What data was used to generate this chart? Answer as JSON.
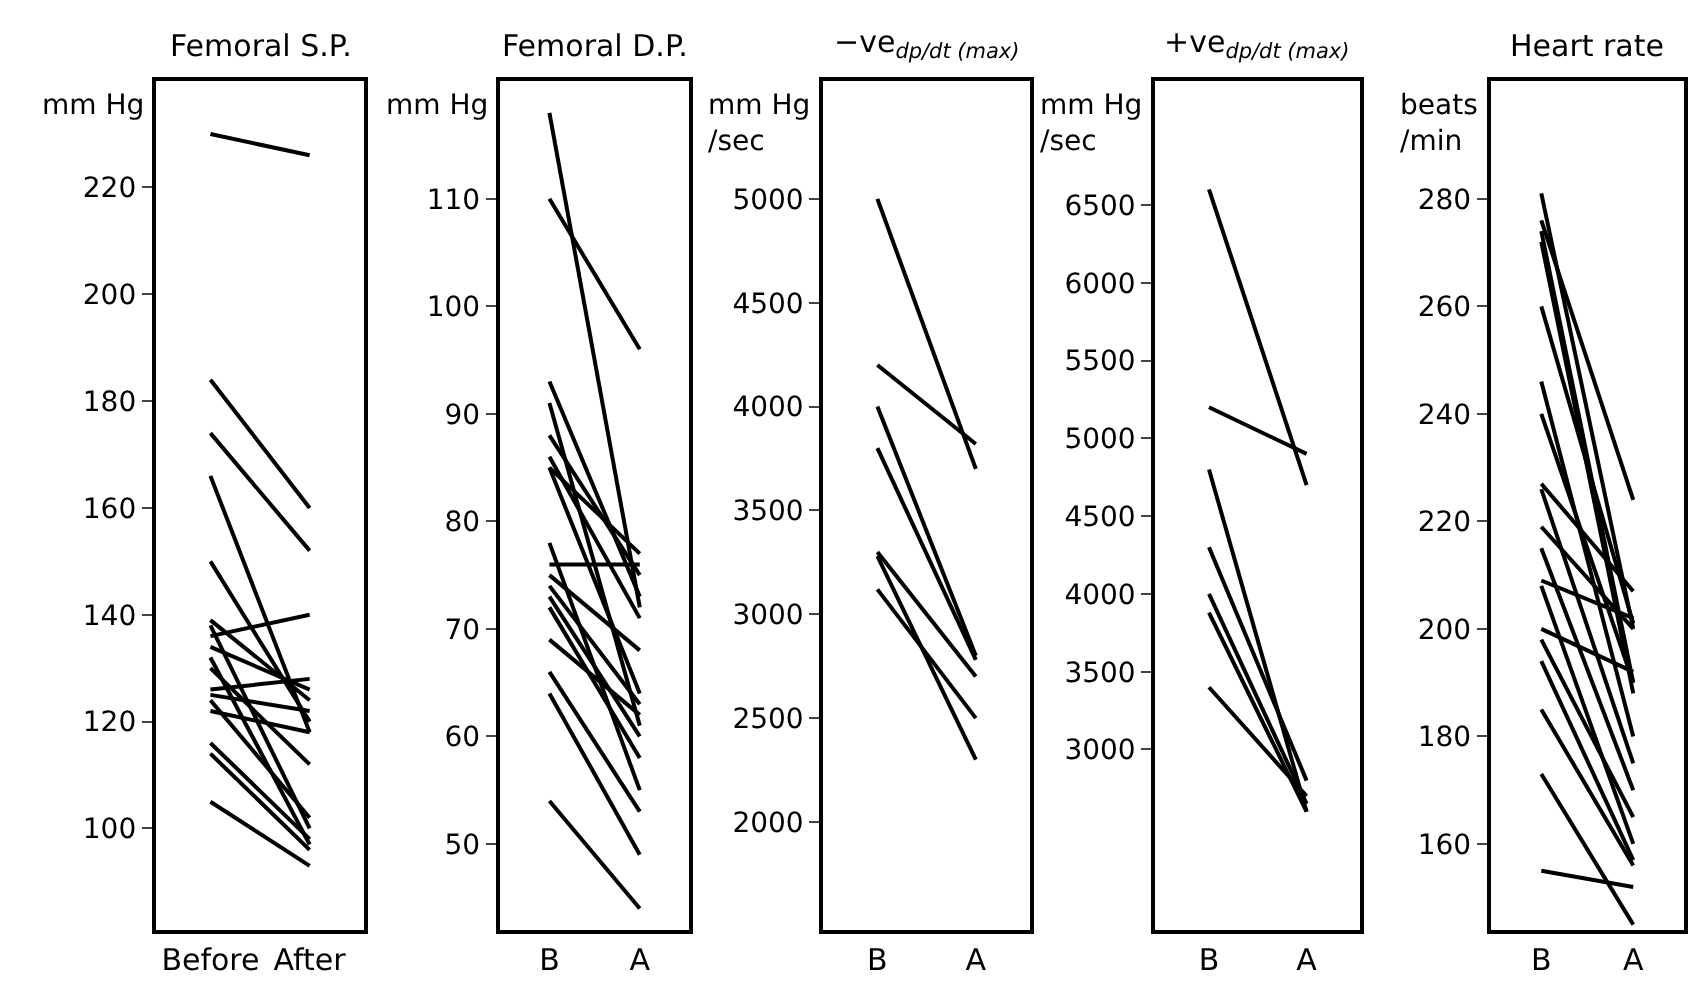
{
  "chart_data": [
    {
      "type": "line",
      "title": "Femoral S.P.",
      "ylabel": "mm Hg",
      "categories": [
        "Before",
        "After"
      ],
      "color": "#000000",
      "marker": "none",
      "line_style": "solid",
      "ylim": [
        81,
        240
      ],
      "yticks": [
        100,
        120,
        140,
        160,
        180,
        200,
        220
      ],
      "series": [
        {
          "values": [
            230,
            226
          ]
        },
        {
          "values": [
            184,
            160
          ]
        },
        {
          "values": [
            174,
            152
          ]
        },
        {
          "values": [
            166,
            118
          ]
        },
        {
          "values": [
            150,
            120
          ]
        },
        {
          "values": [
            136,
            140
          ]
        },
        {
          "values": [
            139,
            124
          ]
        },
        {
          "values": [
            138,
            100
          ]
        },
        {
          "values": [
            134,
            126
          ]
        },
        {
          "values": [
            132,
            97
          ]
        },
        {
          "values": [
            130,
            112
          ]
        },
        {
          "values": [
            126,
            128
          ]
        },
        {
          "values": [
            125,
            122
          ]
        },
        {
          "values": [
            122,
            118
          ]
        },
        {
          "values": [
            124,
            102
          ]
        },
        {
          "values": [
            116,
            98
          ]
        },
        {
          "values": [
            114,
            96
          ]
        },
        {
          "values": [
            105,
            93
          ]
        }
      ]
    },
    {
      "type": "line",
      "title": "Femoral D.P.",
      "ylabel": "mm Hg",
      "categories": [
        "B",
        "A"
      ],
      "color": "#000000",
      "marker": "none",
      "line_style": "solid",
      "ylim": [
        42,
        121
      ],
      "yticks": [
        50,
        60,
        70,
        80,
        90,
        100,
        110
      ],
      "series": [
        {
          "values": [
            118,
            72
          ]
        },
        {
          "values": [
            110,
            96
          ]
        },
        {
          "values": [
            93,
            73
          ]
        },
        {
          "values": [
            91,
            61
          ]
        },
        {
          "values": [
            88,
            75
          ]
        },
        {
          "values": [
            86,
            71
          ]
        },
        {
          "values": [
            85,
            77
          ]
        },
        {
          "values": [
            85,
            64
          ]
        },
        {
          "values": [
            78,
            55
          ]
        },
        {
          "values": [
            76,
            76
          ]
        },
        {
          "values": [
            75,
            68
          ]
        },
        {
          "values": [
            74,
            63
          ]
        },
        {
          "values": [
            73,
            60
          ]
        },
        {
          "values": [
            72,
            58
          ]
        },
        {
          "values": [
            69,
            62
          ]
        },
        {
          "values": [
            66,
            53
          ]
        },
        {
          "values": [
            64,
            49
          ]
        },
        {
          "values": [
            54,
            44
          ]
        }
      ]
    },
    {
      "type": "line",
      "title": "−ve$_{dp/dt (max)}$",
      "ylabel": "mm Hg\n/sec",
      "categories": [
        "B",
        "A"
      ],
      "color": "#000000",
      "marker": "none",
      "line_style": "solid",
      "ylim": [
        1480,
        5570
      ],
      "yticks": [
        2000,
        2500,
        3000,
        3500,
        4000,
        4500,
        5000
      ],
      "series": [
        {
          "values": [
            5000,
            3700
          ]
        },
        {
          "values": [
            4200,
            3820
          ]
        },
        {
          "values": [
            4000,
            2800
          ]
        },
        {
          "values": [
            3800,
            2780
          ]
        },
        {
          "values": [
            3300,
            2700
          ]
        },
        {
          "values": [
            3280,
            2300
          ]
        },
        {
          "values": [
            3120,
            2500
          ]
        }
      ]
    },
    {
      "type": "line",
      "title": "+ve$_{dp/dt (max)}$",
      "ylabel": "mm Hg\n/sec",
      "categories": [
        "B",
        "A"
      ],
      "color": "#000000",
      "marker": "none",
      "line_style": "solid",
      "ylim": [
        1840,
        7300
      ],
      "yticks": [
        3000,
        3500,
        4000,
        4500,
        5000,
        5500,
        6000,
        6500
      ],
      "series": [
        {
          "values": [
            6600,
            4700
          ]
        },
        {
          "values": [
            5200,
            4900
          ]
        },
        {
          "values": [
            4800,
            2600
          ]
        },
        {
          "values": [
            4300,
            2800
          ]
        },
        {
          "values": [
            4000,
            2650
          ]
        },
        {
          "values": [
            3880,
            2600
          ]
        },
        {
          "values": [
            3400,
            2700
          ]
        }
      ]
    },
    {
      "type": "line",
      "title": "Heart rate",
      "ylabel": "beats\n/min",
      "categories": [
        "B",
        "A"
      ],
      "color": "#000000",
      "marker": "none",
      "line_style": "solid",
      "ylim": [
        144,
        302
      ],
      "yticks": [
        160,
        180,
        200,
        220,
        240,
        260,
        280
      ],
      "series": [
        {
          "values": [
            281,
            200
          ]
        },
        {
          "values": [
            276,
            224
          ]
        },
        {
          "values": [
            274,
            190
          ]
        },
        {
          "values": [
            272,
            188
          ]
        },
        {
          "values": [
            260,
            201
          ]
        },
        {
          "values": [
            246,
            180
          ]
        },
        {
          "values": [
            240,
            190
          ]
        },
        {
          "values": [
            227,
            207
          ]
        },
        {
          "values": [
            226,
            175
          ]
        },
        {
          "values": [
            219,
            200
          ]
        },
        {
          "values": [
            215,
            170
          ]
        },
        {
          "values": [
            209,
            202
          ]
        },
        {
          "values": [
            208,
            160
          ]
        },
        {
          "values": [
            200,
            192
          ]
        },
        {
          "values": [
            198,
            165
          ]
        },
        {
          "values": [
            194,
            157
          ]
        },
        {
          "values": [
            185,
            156
          ]
        },
        {
          "values": [
            173,
            145
          ]
        },
        {
          "values": [
            155,
            152
          ]
        }
      ]
    }
  ]
}
